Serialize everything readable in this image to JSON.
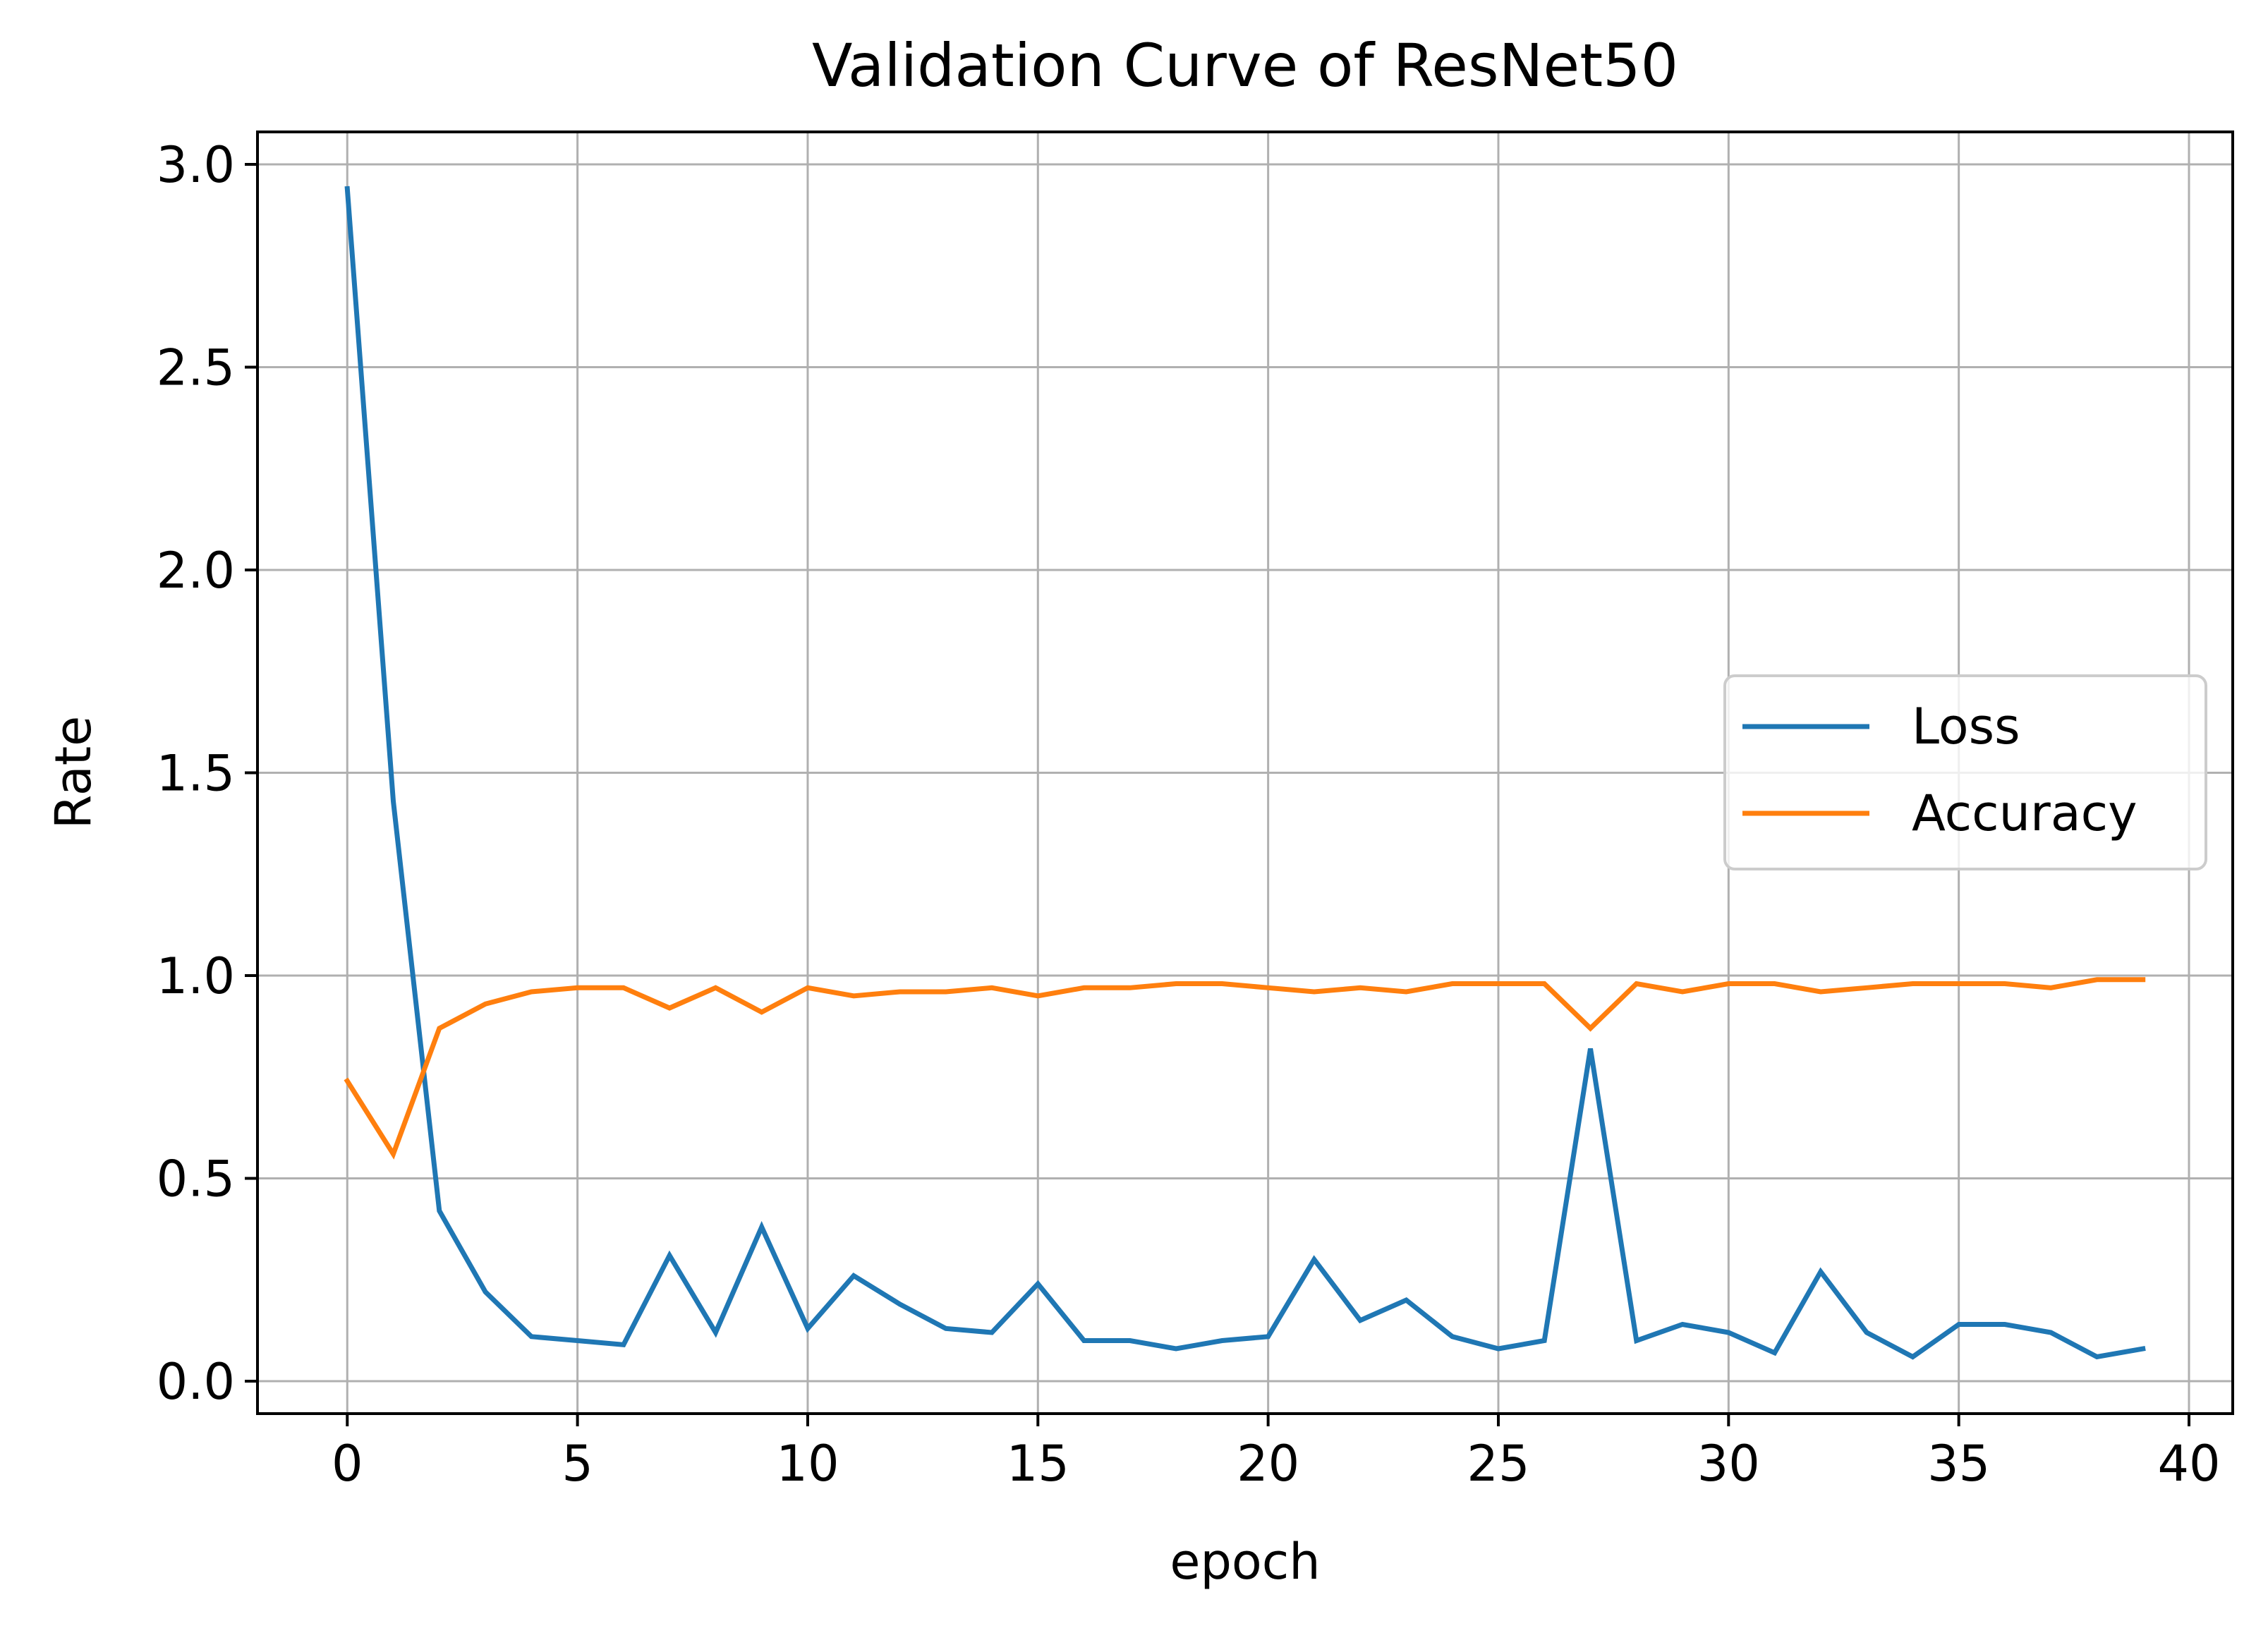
{
  "chart_data": {
    "type": "line",
    "title": "Validation Curve of ResNet50",
    "xlabel": "epoch",
    "ylabel": "Rate",
    "xlim": [
      -1.95,
      40.95
    ],
    "ylim": [
      -0.08,
      3.08
    ],
    "xticks": [
      0,
      5,
      10,
      15,
      20,
      25,
      30,
      35,
      40
    ],
    "xtick_labels": [
      "0",
      "5",
      "10",
      "15",
      "20",
      "25",
      "30",
      "35",
      "40"
    ],
    "yticks": [
      0.0,
      0.5,
      1.0,
      1.5,
      2.0,
      2.5,
      3.0
    ],
    "ytick_labels": [
      "0.0",
      "0.5",
      "1.0",
      "1.5",
      "2.0",
      "2.5",
      "3.0"
    ],
    "grid": true,
    "legend_position": "center-right",
    "x": [
      0,
      1,
      2,
      3,
      4,
      5,
      6,
      7,
      8,
      9,
      10,
      11,
      12,
      13,
      14,
      15,
      16,
      17,
      18,
      19,
      20,
      21,
      22,
      23,
      24,
      25,
      26,
      27,
      28,
      29,
      30,
      31,
      32,
      33,
      34,
      35,
      36,
      37,
      38,
      39
    ],
    "series": [
      {
        "name": "Loss",
        "color": "#1f77b4",
        "values": [
          2.94,
          1.43,
          0.42,
          0.22,
          0.11,
          0.1,
          0.09,
          0.31,
          0.12,
          0.38,
          0.13,
          0.26,
          0.19,
          0.13,
          0.12,
          0.24,
          0.1,
          0.1,
          0.08,
          0.1,
          0.11,
          0.3,
          0.15,
          0.2,
          0.11,
          0.08,
          0.1,
          0.82,
          0.1,
          0.14,
          0.12,
          0.07,
          0.27,
          0.12,
          0.06,
          0.14,
          0.14,
          0.12,
          0.06,
          0.08
        ]
      },
      {
        "name": "Accuracy",
        "color": "#ff7f0e",
        "values": [
          0.74,
          0.56,
          0.87,
          0.93,
          0.96,
          0.97,
          0.97,
          0.92,
          0.97,
          0.91,
          0.97,
          0.95,
          0.96,
          0.96,
          0.97,
          0.95,
          0.97,
          0.97,
          0.98,
          0.98,
          0.97,
          0.96,
          0.97,
          0.96,
          0.98,
          0.98,
          0.98,
          0.87,
          0.98,
          0.96,
          0.98,
          0.98,
          0.96,
          0.97,
          0.98,
          0.98,
          0.98,
          0.97,
          0.99,
          0.99
        ]
      }
    ]
  }
}
